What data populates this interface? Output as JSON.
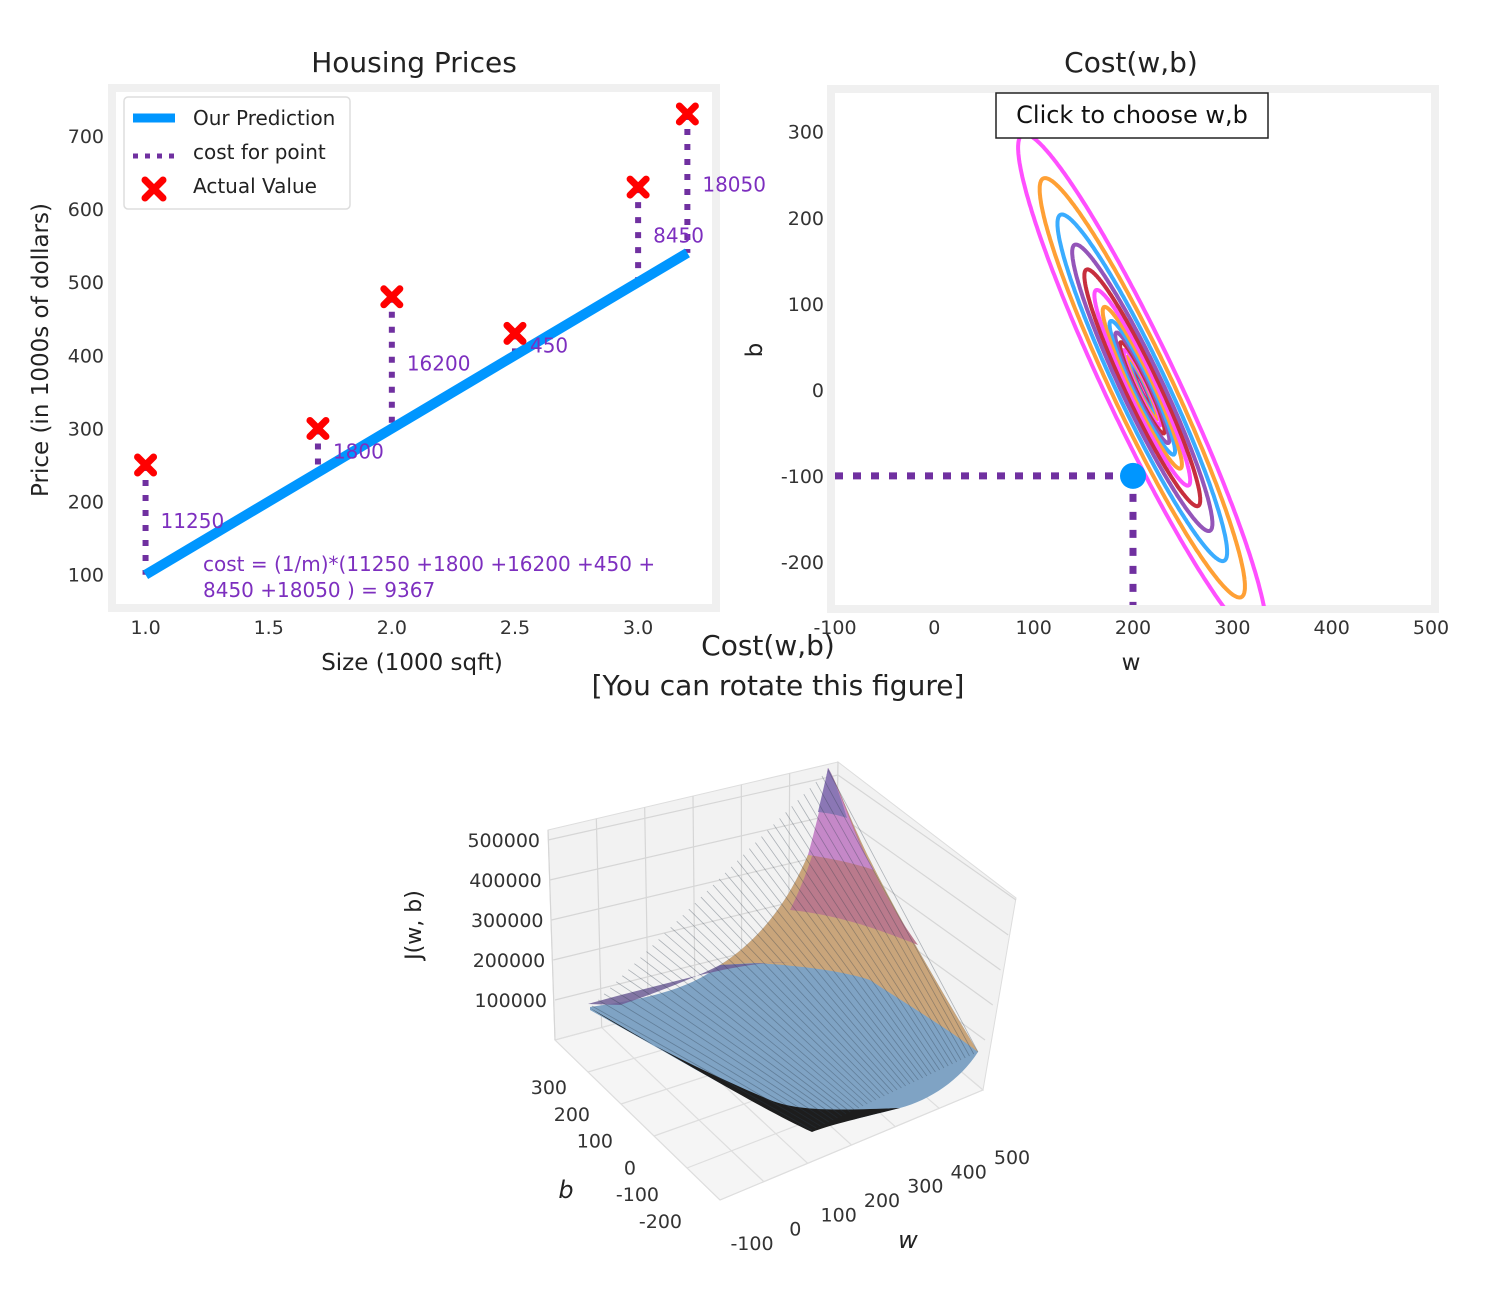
{
  "chart_data": [
    {
      "type": "line",
      "title": "Housing Prices",
      "xlabel": "Size (1000 sqft)",
      "ylabel": "Price (in 1000s of dollars)",
      "xlim": [
        0.88,
        3.3
      ],
      "ylim": [
        60,
        760
      ],
      "xticks": [
        "1.0",
        "1.5",
        "2.0",
        "2.5",
        "3.0"
      ],
      "xtick_values": [
        1.0,
        1.5,
        2.0,
        2.5,
        3.0
      ],
      "yticks": [
        "100",
        "200",
        "300",
        "400",
        "500",
        "600",
        "700"
      ],
      "ytick_values": [
        100,
        200,
        300,
        400,
        500,
        600,
        700
      ],
      "legend": {
        "placement": "upper-left",
        "entries": [
          "Our Prediction",
          "cost for point",
          "Actual Value"
        ]
      },
      "prediction_line": {
        "w": 200,
        "b": -100,
        "x_range": [
          1.0,
          3.2
        ]
      },
      "points": [
        {
          "x": 1.0,
          "y": 250,
          "cost_label": "11250"
        },
        {
          "x": 1.7,
          "y": 300,
          "cost_label": "1800"
        },
        {
          "x": 2.0,
          "y": 480,
          "cost_label": "16200"
        },
        {
          "x": 2.5,
          "y": 430,
          "cost_label": "450"
        },
        {
          "x": 3.0,
          "y": 630,
          "cost_label": "8450"
        },
        {
          "x": 3.2,
          "y": 730,
          "cost_label": "18050"
        }
      ],
      "cost_text_line1": "cost = (1/m)*(11250 +1800 +16200 +450 +",
      "cost_text_line2": "8450 +18050 ) = 9367",
      "colors": {
        "line": "#0096ff",
        "point": "#ff0000",
        "cost": "#7030a0",
        "annotation": "#7d2fbf"
      }
    },
    {
      "type": "contour",
      "title": "Cost(w,b)",
      "xlabel": "w",
      "ylabel": "b",
      "xlim": [
        -100,
        500
      ],
      "ylim": [
        -250,
        345
      ],
      "xticks": [
        "-100",
        "0",
        "100",
        "200",
        "300",
        "400",
        "500"
      ],
      "xtick_values": [
        -100,
        0,
        100,
        200,
        300,
        400,
        500
      ],
      "yticks": [
        "300",
        "200",
        "100",
        "0",
        "-100",
        "-200"
      ],
      "ytick_values": [
        300,
        200,
        100,
        0,
        -100,
        -200
      ],
      "button_label": "Click to choose w,b",
      "selected_point": {
        "w": 200,
        "b": -100
      },
      "cost_minimum": {
        "w": 209.5,
        "b": 2.2
      },
      "level_colors": [
        "#ffa035",
        "#ff4fff",
        "#c72e3d",
        "#9455b9",
        "#3aacff"
      ],
      "colors": {
        "marker": "#0096ff",
        "crosshair": "#7030a0"
      }
    },
    {
      "type": "surface3d",
      "title_line1": "Cost(w,b)",
      "title_line2": "[You can rotate this figure]",
      "xlabel": "w",
      "ylabel": "b",
      "zlabel": "J(w, b)",
      "xticks": [
        "-100",
        "0",
        "100",
        "200",
        "300",
        "400",
        "500"
      ],
      "yticks": [
        "300",
        "200",
        "100",
        "0",
        "-100",
        "-200"
      ],
      "zticks": [
        "500000",
        "400000",
        "300000",
        "200000",
        "100000"
      ],
      "w_range": [
        -100,
        500
      ],
      "b_range": [
        -200,
        300
      ],
      "band_colors": [
        "#7fa3c4",
        "#c9a57b",
        "#ba7a8c",
        "#c588c8",
        "#8b77b5"
      ]
    }
  ]
}
